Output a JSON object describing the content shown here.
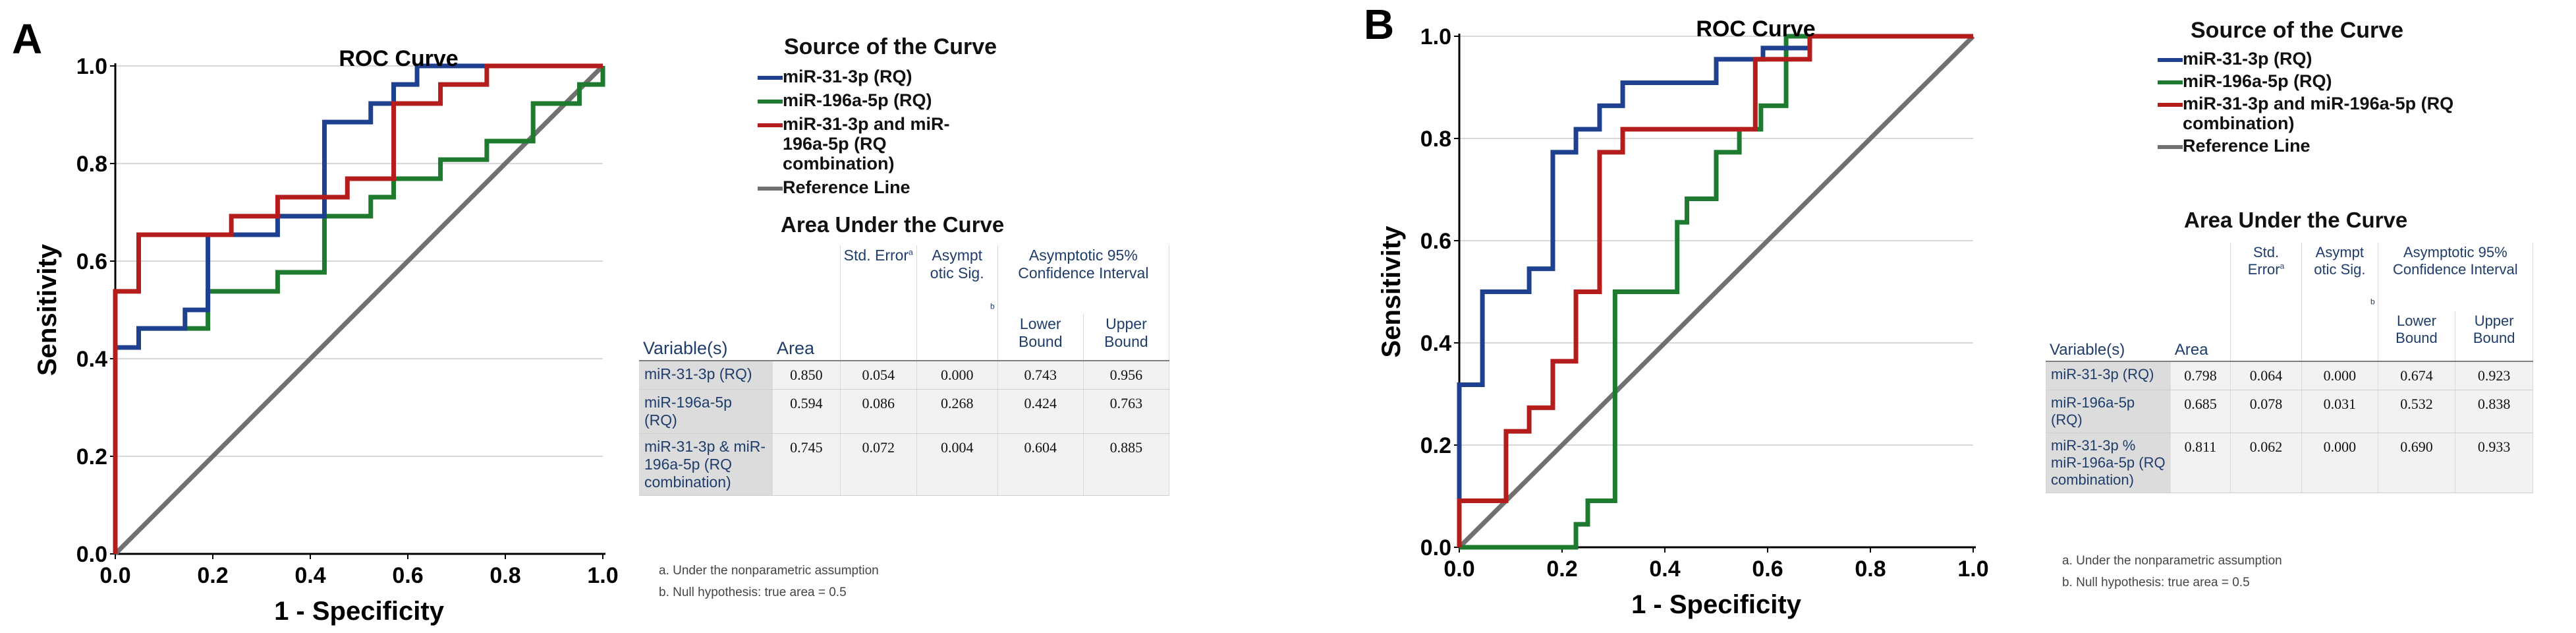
{
  "chart_data": [
    {
      "type": "line",
      "panel": "A",
      "title": "ROC Curve",
      "xlabel": "1 - Specificity",
      "ylabel": "Sensitivity",
      "xlim": [
        0,
        1
      ],
      "ylim": [
        0,
        1
      ],
      "xticks": [
        "0.0",
        "0.2",
        "0.4",
        "0.6",
        "0.8",
        "1.0"
      ],
      "yticks": [
        "0.0",
        "0.2",
        "0.4",
        "0.6",
        "0.8",
        "1.0"
      ],
      "legend_title": "Source of the Curve",
      "series": [
        {
          "name": "miR-31-3p (RQ)",
          "color": "#1f3f8f",
          "x": [
            0,
            0,
            0.048,
            0.048,
            0.143,
            0.143,
            0.19,
            0.19,
            0.333,
            0.333,
            0.429,
            0.429,
            0.524,
            0.524,
            0.571,
            0.571,
            0.619,
            0.619,
            1
          ],
          "y": [
            0,
            0.423,
            0.423,
            0.462,
            0.462,
            0.5,
            0.5,
            0.654,
            0.654,
            0.692,
            0.692,
            0.885,
            0.885,
            0.923,
            0.923,
            0.962,
            0.962,
            1,
            1
          ]
        },
        {
          "name": "miR-196a-5p (RQ)",
          "color": "#1e7a2e",
          "x": [
            0,
            0,
            0.048,
            0.048,
            0.19,
            0.19,
            0.333,
            0.333,
            0.429,
            0.429,
            0.524,
            0.524,
            0.571,
            0.571,
            0.667,
            0.667,
            0.762,
            0.762,
            0.857,
            0.857,
            0.952,
            0.952,
            1,
            1
          ],
          "y": [
            0,
            0.423,
            0.423,
            0.462,
            0.462,
            0.538,
            0.538,
            0.577,
            0.577,
            0.692,
            0.692,
            0.731,
            0.731,
            0.769,
            0.769,
            0.808,
            0.808,
            0.846,
            0.846,
            0.923,
            0.923,
            0.962,
            0.962,
            1
          ]
        },
        {
          "name": "miR-31-3p and miR-196a-5p (RQ combination)",
          "color": "#b51c1c",
          "x": [
            0,
            0,
            0.048,
            0.048,
            0.238,
            0.238,
            0.333,
            0.333,
            0.476,
            0.476,
            0.571,
            0.571,
            0.667,
            0.667,
            0.762,
            0.762,
            1
          ],
          "y": [
            0,
            0.538,
            0.538,
            0.654,
            0.654,
            0.692,
            0.692,
            0.731,
            0.731,
            0.769,
            0.769,
            0.923,
            0.923,
            0.962,
            0.962,
            1,
            1
          ]
        },
        {
          "name": "Reference Line",
          "color": "#707070",
          "x": [
            0,
            1
          ],
          "y": [
            0,
            1
          ]
        }
      ],
      "auc_table": {
        "title": "Area Under the Curve",
        "headers": {
          "variable": "Variable(s)",
          "area": "Area",
          "std_error": "Std. Error",
          "std_error_sup": "a",
          "asympt": "Asympt otic Sig.",
          "asympt_sup": "b",
          "ci": "Asymptotic 95% Confidence Interval",
          "lower": "Lower Bound",
          "upper": "Upper Bound"
        },
        "rows": [
          {
            "variable": "miR-31-3p (RQ)",
            "area": "0.850",
            "se": "0.054",
            "sig": "0.000",
            "lower": "0.743",
            "upper": "0.956"
          },
          {
            "variable": "miR-196a-5p (RQ)",
            "area": "0.594",
            "se": "0.086",
            "sig": "0.268",
            "lower": "0.424",
            "upper": "0.763"
          },
          {
            "variable": "miR-31-3p & miR-196a-5p (RQ combination)",
            "area": "0.745",
            "se": "0.072",
            "sig": "0.004",
            "lower": "0.604",
            "upper": "0.885"
          }
        ],
        "footnotes": [
          "a. Under the nonparametric assumption",
          "b. Null hypothesis: true area = 0.5"
        ]
      }
    },
    {
      "type": "line",
      "panel": "B",
      "title": "ROC Curve",
      "xlabel": "1 - Specificity",
      "ylabel": "Sensitivity",
      "xlim": [
        0,
        1
      ],
      "ylim": [
        0,
        1
      ],
      "xticks": [
        "0.0",
        "0.2",
        "0.4",
        "0.6",
        "0.8",
        "1.0"
      ],
      "yticks": [
        "0.0",
        "0.2",
        "0.4",
        "0.6",
        "0.8",
        "1.0"
      ],
      "legend_title": "Source of the Curve",
      "series": [
        {
          "name": "miR-31-3p (RQ)",
          "color": "#1f3f8f",
          "x": [
            0,
            0,
            0.045,
            0.045,
            0.136,
            0.136,
            0.182,
            0.182,
            0.227,
            0.227,
            0.273,
            0.273,
            0.318,
            0.318,
            0.5,
            0.5,
            0.591,
            0.591,
            0.682,
            0.682,
            1
          ],
          "y": [
            0,
            0.318,
            0.318,
            0.5,
            0.5,
            0.545,
            0.545,
            0.773,
            0.773,
            0.818,
            0.818,
            0.864,
            0.864,
            0.909,
            0.909,
            0.955,
            0.955,
            0.977,
            0.977,
            1,
            1
          ]
        },
        {
          "name": "miR-196a-5p (RQ)",
          "color": "#1e7a2e",
          "x": [
            0,
            0.227,
            0.227,
            0.25,
            0.25,
            0.303,
            0.303,
            0.424,
            0.424,
            0.443,
            0.443,
            0.5,
            0.5,
            0.545,
            0.545,
            0.587,
            0.587,
            0.636,
            0.636,
            1
          ],
          "y": [
            0,
            0,
            0.045,
            0.045,
            0.091,
            0.091,
            0.5,
            0.5,
            0.636,
            0.636,
            0.682,
            0.682,
            0.773,
            0.773,
            0.818,
            0.818,
            0.864,
            0.864,
            1,
            1
          ]
        },
        {
          "name": "miR-31-3p and miR-196a-5p (RQ combination)",
          "color": "#b51c1c",
          "x": [
            0,
            0,
            0.091,
            0.091,
            0.136,
            0.136,
            0.182,
            0.182,
            0.227,
            0.227,
            0.273,
            0.273,
            0.318,
            0.318,
            0.409,
            0.409,
            0.576,
            0.576,
            0.636,
            0.636,
            0.682,
            0.682,
            1
          ],
          "y": [
            0,
            0.091,
            0.091,
            0.227,
            0.227,
            0.273,
            0.273,
            0.364,
            0.364,
            0.5,
            0.5,
            0.773,
            0.773,
            0.818,
            0.818,
            0.818,
            0.818,
            0.955,
            0.955,
            0.955,
            0.955,
            1,
            1
          ]
        },
        {
          "name": "Reference Line",
          "color": "#707070",
          "x": [
            0,
            1
          ],
          "y": [
            0,
            1
          ]
        }
      ],
      "auc_table": {
        "title": "Area Under the Curve",
        "headers": {
          "variable": "Variable(s)",
          "area": "Area",
          "std_error": "Std. Error",
          "std_error_sup": "a",
          "asympt": "Asympt otic Sig.",
          "asympt_sup": "b",
          "ci": "Asymptotic 95% Confidence Interval",
          "lower": "Lower Bound",
          "upper": "Upper Bound"
        },
        "rows": [
          {
            "variable": "miR-31-3p (RQ)",
            "area": "0.798",
            "se": "0.064",
            "sig": "0.000",
            "lower": "0.674",
            "upper": "0.923"
          },
          {
            "variable": "miR-196a-5p (RQ)",
            "area": "0.685",
            "se": "0.078",
            "sig": "0.031",
            "lower": "0.532",
            "upper": "0.838"
          },
          {
            "variable": "miR-31-3p % miR-196a-5p (RQ combination)",
            "area": "0.811",
            "se": "0.062",
            "sig": "0.000",
            "lower": "0.690",
            "upper": "0.933"
          }
        ],
        "footnotes": [
          "a. Under the nonparametric assumption",
          "b. Null hypothesis: true area = 0.5"
        ]
      }
    }
  ],
  "panels": {
    "A": {
      "letter": "A"
    },
    "B": {
      "letter": "B"
    }
  }
}
